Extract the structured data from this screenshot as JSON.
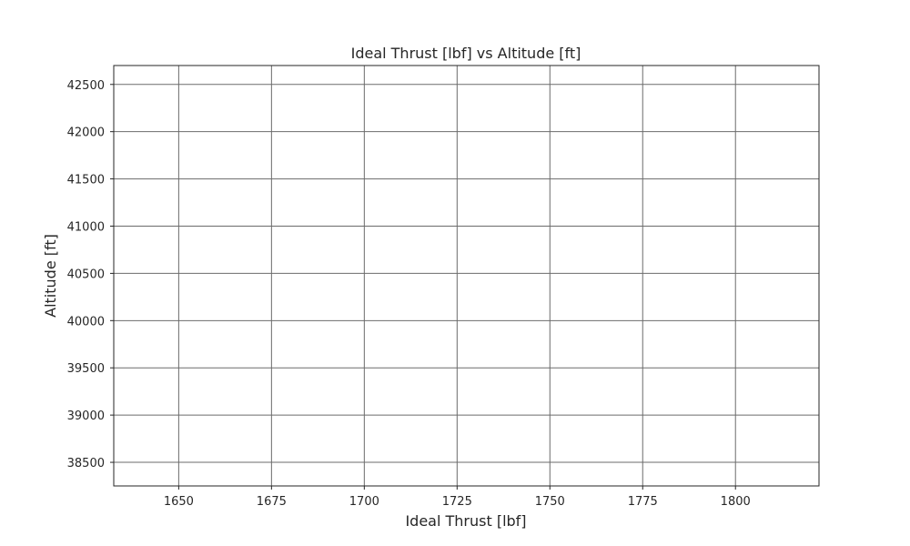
{
  "chart_data": {
    "type": "line",
    "title": "Ideal Thrust [lbf] vs Altitude [ft]",
    "xlabel": "Ideal Thrust [lbf]",
    "ylabel": "Altitude [ft]",
    "xlim": [
      1632.5,
      1822.5
    ],
    "ylim": [
      38250,
      42700
    ],
    "x_ticks": [
      1650,
      1675,
      1700,
      1725,
      1750,
      1775,
      1800
    ],
    "x_tick_labels": [
      "1650",
      "1675",
      "1700",
      "1725",
      "1750",
      "1775",
      "1800"
    ],
    "y_ticks": [
      38500,
      39000,
      39500,
      40000,
      40500,
      41000,
      41500,
      42000,
      42500
    ],
    "y_tick_labels": [
      "38500",
      "39000",
      "39500",
      "40000",
      "40500",
      "41000",
      "41500",
      "42000",
      "42500"
    ],
    "grid": true,
    "series": []
  },
  "colors": {
    "grid": "#6b6b6b",
    "axis": "#262626",
    "text": "#262626",
    "background": "#ffffff"
  }
}
